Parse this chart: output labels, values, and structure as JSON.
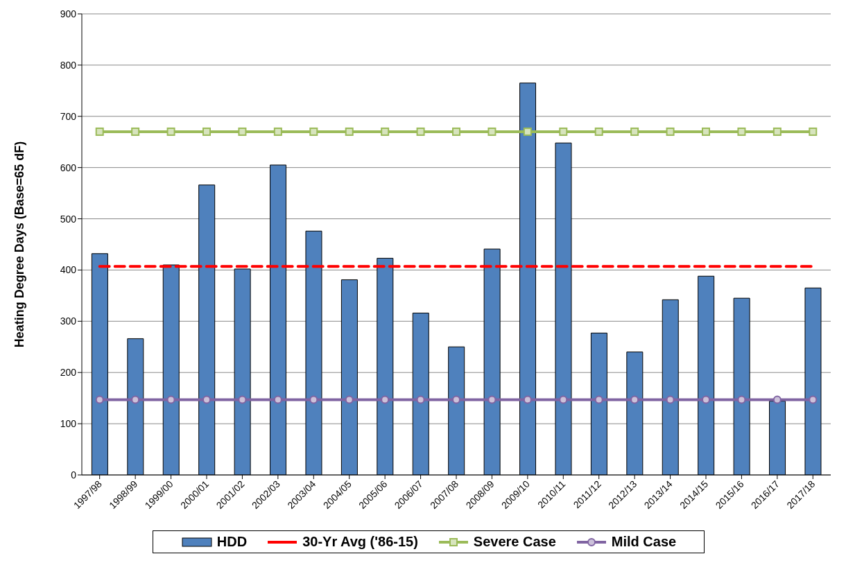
{
  "chart_data": {
    "type": "bar",
    "ylabel": "Heating Degree Days (Base=65 dF)",
    "categories": [
      "1997/98",
      "1998/99",
      "1999/00",
      "2000/01",
      "2001/02",
      "2002/03",
      "2003/04",
      "2004/05",
      "2005/06",
      "2006/07",
      "2007/08",
      "2008/09",
      "2009/10",
      "2010/11",
      "2011/12",
      "2012/13",
      "2013/14",
      "2014/15",
      "2015/16",
      "2016/17",
      "2017/18"
    ],
    "series": [
      {
        "name": "HDD",
        "color": "#4f81bd",
        "values": [
          432,
          266,
          410,
          566,
          402,
          605,
          476,
          381,
          423,
          316,
          250,
          441,
          765,
          648,
          277,
          240,
          342,
          388,
          345,
          144,
          365
        ]
      },
      {
        "name": "30-Yr Avg ('86-15)",
        "type": "line",
        "color": "#ff0000",
        "line_style": "dashed",
        "marker": "none",
        "values": [
          407,
          407,
          407,
          407,
          407,
          407,
          407,
          407,
          407,
          407,
          407,
          407,
          407,
          407,
          407,
          407,
          407,
          407,
          407,
          407,
          407
        ]
      },
      {
        "name": "Severe Case",
        "type": "line",
        "color": "#9bbb59",
        "line_style": "solid",
        "marker": "square",
        "values": [
          670,
          670,
          670,
          670,
          670,
          670,
          670,
          670,
          670,
          670,
          670,
          670,
          670,
          670,
          670,
          670,
          670,
          670,
          670,
          670,
          670
        ]
      },
      {
        "name": "Mild Case",
        "type": "line",
        "color": "#8064a2",
        "line_style": "solid",
        "marker": "circle",
        "values": [
          147,
          147,
          147,
          147,
          147,
          147,
          147,
          147,
          147,
          147,
          147,
          147,
          147,
          147,
          147,
          147,
          147,
          147,
          147,
          147,
          147
        ]
      }
    ],
    "ylim": [
      0,
      900
    ],
    "yticks": [
      0,
      100,
      200,
      300,
      400,
      500,
      600,
      700,
      800,
      900
    ],
    "grid": "y",
    "legend": "bottom"
  }
}
